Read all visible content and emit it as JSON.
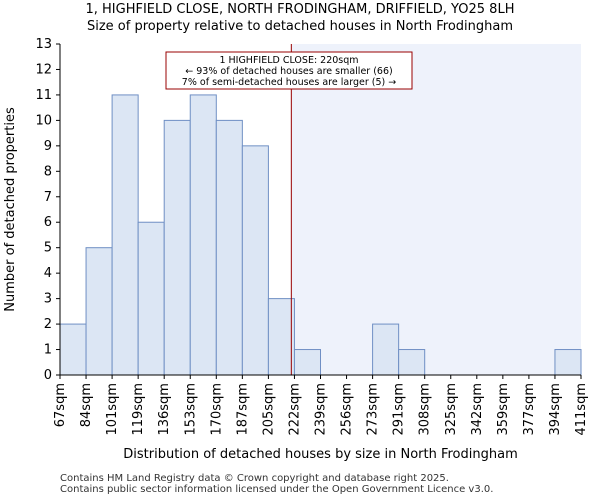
{
  "chart_data": {
    "type": "bar",
    "title": "1, HIGHFIELD CLOSE, NORTH FRODINGHAM, DRIFFIELD, YO25 8LH",
    "subtitle": "Size of property relative to detached houses in North Frodingham",
    "xlabel": "Distribution of detached houses by size in North Frodingham",
    "ylabel": "Number of detached properties",
    "bin_edges": [
      "67sqm",
      "84sqm",
      "101sqm",
      "119sqm",
      "136sqm",
      "153sqm",
      "170sqm",
      "187sqm",
      "205sqm",
      "222sqm",
      "239sqm",
      "256sqm",
      "273sqm",
      "291sqm",
      "308sqm",
      "325sqm",
      "342sqm",
      "359sqm",
      "377sqm",
      "394sqm",
      "411sqm"
    ],
    "values": [
      2,
      5,
      11,
      6,
      10,
      11,
      10,
      9,
      3,
      1,
      0,
      0,
      2,
      1,
      0,
      0,
      0,
      0,
      0,
      1
    ],
    "ylim": [
      0,
      13
    ],
    "yticks": [
      0,
      1,
      2,
      3,
      4,
      5,
      6,
      7,
      8,
      9,
      10,
      11,
      12,
      13
    ],
    "property_marker": {
      "value_sqm": 220,
      "bin_position": 8.88
    },
    "annotation": {
      "line1": "1 HIGHFIELD CLOSE: 220sqm",
      "line2": "← 93% of detached houses are smaller (66)",
      "line3": "7% of semi-detached houses are larger (5) →"
    },
    "colors": {
      "bar_fill": "#dce6f4",
      "bar_stroke": "#6f8fc4",
      "highlight_bg": "#eef2fb",
      "marker": "#990000"
    }
  },
  "footer": {
    "line1": "Contains HM Land Registry data © Crown copyright and database right 2025.",
    "line2": "Contains public sector information licensed under the Open Government Licence v3.0."
  }
}
